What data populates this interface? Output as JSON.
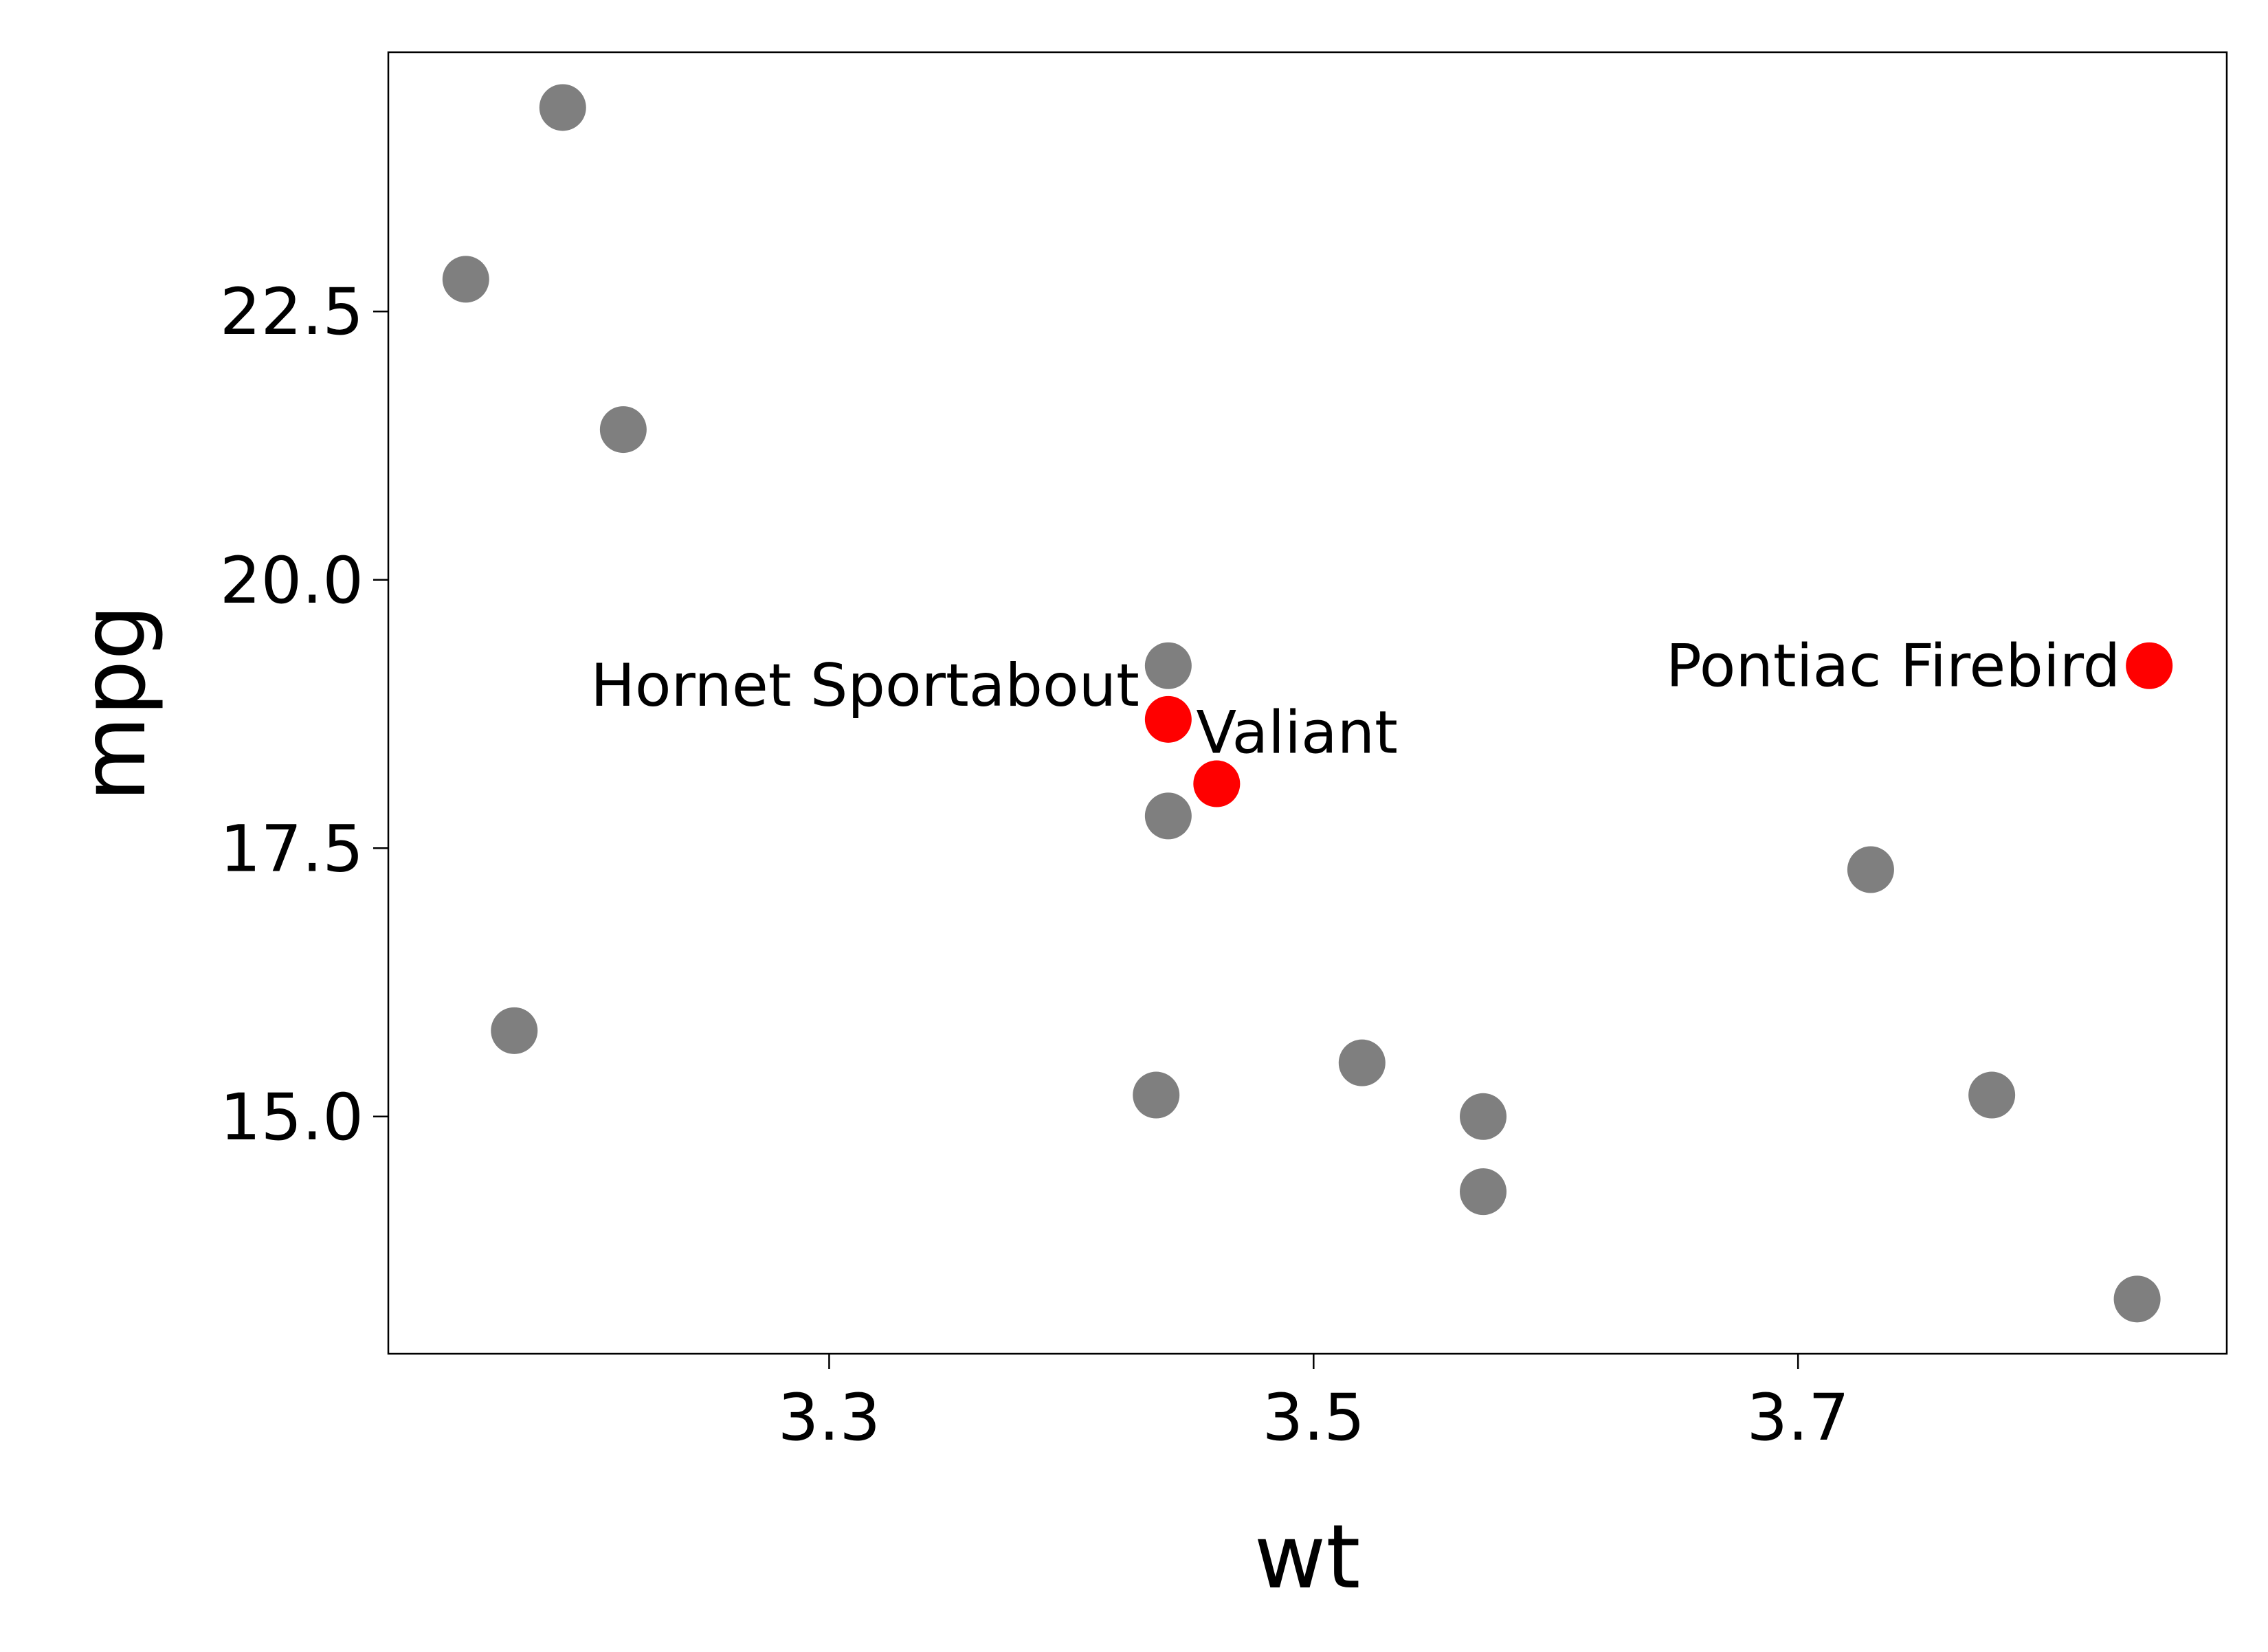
{
  "chart_data": {
    "type": "scatter",
    "x_label": "wt",
    "y_label": "mpg",
    "x": [
      3.44,
      3.46,
      3.845,
      3.44,
      3.44,
      3.73,
      3.78,
      3.52,
      3.435,
      3.57,
      3.57,
      3.84,
      3.215,
      3.15,
      3.19,
      3.17
    ],
    "values": [
      18.7,
      18.1,
      19.2,
      19.2,
      17.8,
      17.3,
      15.2,
      15.5,
      15.2,
      15.0,
      14.3,
      13.3,
      21.4,
      22.8,
      24.4,
      15.8
    ],
    "colors": [
      "#ff0000",
      "#ff0000",
      "#ff0000",
      "#7f7f7f",
      "#7f7f7f",
      "#7f7f7f",
      "#7f7f7f",
      "#7f7f7f",
      "#7f7f7f",
      "#7f7f7f",
      "#7f7f7f",
      "#7f7f7f",
      "#7f7f7f",
      "#7f7f7f",
      "#7f7f7f",
      "#7f7f7f"
    ],
    "labels": [
      "Hornet Sportabout",
      "Valiant",
      "Pontiac Firebird",
      null,
      null,
      null,
      null,
      null,
      null,
      null,
      null,
      null,
      null,
      null,
      null,
      null
    ],
    "xlim": [
      3.118,
      3.877
    ],
    "ylim": [
      12.79,
      24.915
    ],
    "xticks": [
      3.3,
      3.5,
      3.7
    ],
    "yticks": [
      {
        "value": 15,
        "label": "15.0"
      },
      17.5,
      {
        "value": 20,
        "label": "20.0"
      },
      22.5
    ]
  }
}
